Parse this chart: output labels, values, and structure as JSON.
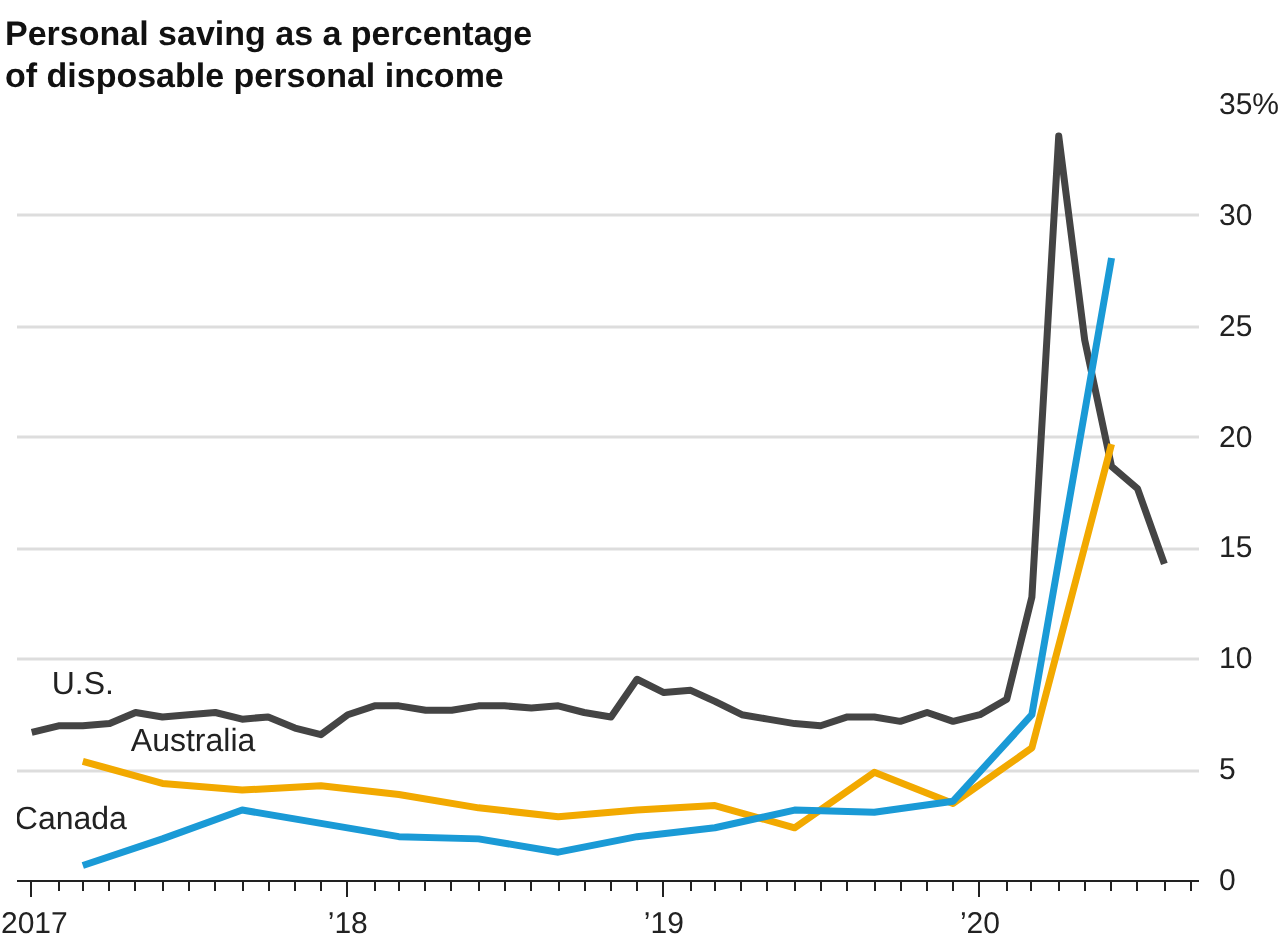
{
  "chart_data": {
    "type": "line",
    "title": "Personal saving as a percentage\nof disposable personal income",
    "xlim": [
      "2016-12-15",
      "2020-09-10"
    ],
    "xticks": [
      {
        "value": "2017-01",
        "label": "2017"
      },
      {
        "value": "2018-01",
        "label": "’18"
      },
      {
        "value": "2019-01",
        "label": "’19"
      },
      {
        "value": "2020-01",
        "label": "’20"
      }
    ],
    "ylim": [
      0,
      35
    ],
    "yticks": [
      0,
      5,
      10,
      15,
      20,
      25,
      30,
      {
        "value": 35,
        "label": "35%"
      }
    ],
    "grid": "y",
    "legend": false,
    "series": [
      {
        "name": "U.S.",
        "color": "#444444",
        "x": [
          "2017-01",
          "2017-02",
          "2017-03",
          "2017-04",
          "2017-05",
          "2017-06",
          "2017-07",
          "2017-08",
          "2017-09",
          "2017-10",
          "2017-11",
          "2017-12",
          "2018-01",
          "2018-02",
          "2018-03",
          "2018-04",
          "2018-05",
          "2018-06",
          "2018-07",
          "2018-08",
          "2018-09",
          "2018-10",
          "2018-11",
          "2018-12",
          "2019-01",
          "2019-02",
          "2019-03",
          "2019-04",
          "2019-05",
          "2019-06",
          "2019-07",
          "2019-08",
          "2019-09",
          "2019-10",
          "2019-11",
          "2019-12",
          "2020-01",
          "2020-02",
          "2020-03",
          "2020-04",
          "2020-05",
          "2020-06",
          "2020-07",
          "2020-08"
        ],
        "values": [
          6.7,
          7.0,
          7.0,
          7.1,
          7.6,
          7.4,
          7.5,
          7.6,
          7.3,
          7.4,
          6.9,
          6.6,
          7.5,
          7.9,
          7.9,
          7.7,
          7.7,
          7.9,
          7.9,
          7.8,
          7.9,
          7.6,
          7.4,
          9.1,
          8.5,
          8.6,
          8.1,
          7.5,
          7.3,
          7.1,
          7.0,
          7.4,
          7.4,
          7.2,
          7.6,
          7.2,
          7.5,
          8.2,
          12.8,
          33.6,
          24.4,
          18.7,
          17.7,
          14.3
        ]
      },
      {
        "name": "Australia",
        "color": "#f2a900",
        "x": [
          "2017-03",
          "2017-06",
          "2017-09",
          "2017-12",
          "2018-03",
          "2018-06",
          "2018-09",
          "2018-12",
          "2019-03",
          "2019-06",
          "2019-09",
          "2019-12",
          "2020-03",
          "2020-06"
        ],
        "values": [
          5.4,
          4.4,
          4.1,
          4.3,
          3.9,
          3.3,
          2.9,
          3.2,
          3.4,
          2.4,
          4.9,
          3.5,
          6.0,
          19.7
        ]
      },
      {
        "name": "Canada",
        "color": "#1a9ad6",
        "x": [
          "2017-03",
          "2017-06",
          "2017-09",
          "2017-12",
          "2018-03",
          "2018-06",
          "2018-09",
          "2018-12",
          "2019-03",
          "2019-06",
          "2019-09",
          "2019-12",
          "2020-03",
          "2020-06"
        ],
        "values": [
          0.7,
          1.9,
          3.2,
          2.6,
          2.0,
          1.9,
          1.3,
          2.0,
          2.4,
          3.2,
          3.1,
          3.6,
          7.5,
          28.1
        ]
      }
    ]
  }
}
